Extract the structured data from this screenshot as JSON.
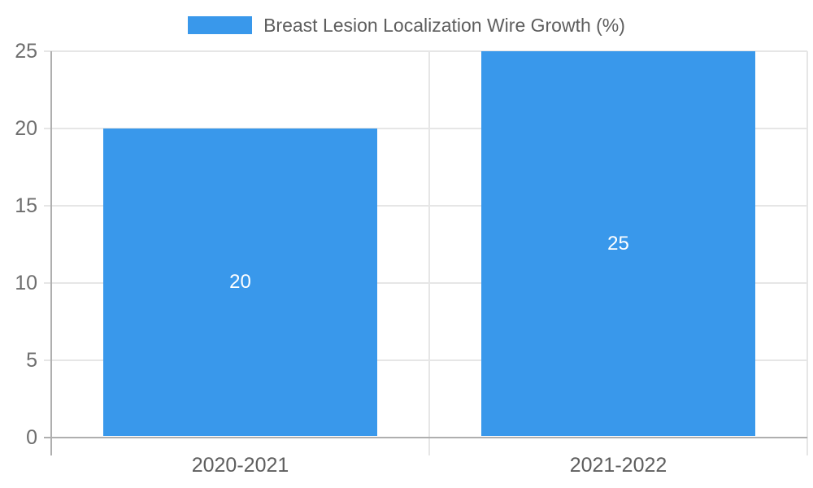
{
  "legend": {
    "label": "Breast Lesion Localization Wire Growth (%)"
  },
  "chart_data": {
    "type": "bar",
    "title": "Breast Lesion Localization Wire Growth (%)",
    "categories": [
      "2020-2021",
      "2021-2022"
    ],
    "values": [
      20,
      25
    ],
    "series": [
      {
        "name": "Breast Lesion Localization Wire Growth (%)",
        "values": [
          20,
          25
        ]
      }
    ],
    "bar_value_labels": [
      "20",
      "25"
    ],
    "xlabel": "",
    "ylabel": "",
    "ylim": [
      0,
      25
    ],
    "yticks": [
      0,
      5,
      10,
      15,
      20,
      25
    ],
    "grid": true,
    "legend_position": "top-center"
  },
  "colors": {
    "bar": "#3998eb",
    "bar_label": "#ffffff",
    "gridline": "#e6e6e6",
    "axis_line": "#afafaf",
    "tick_text": "#6e6e6e",
    "category_text": "#5e5e5e",
    "legend_text": "#5e5e5e",
    "background": "#ffffff"
  }
}
